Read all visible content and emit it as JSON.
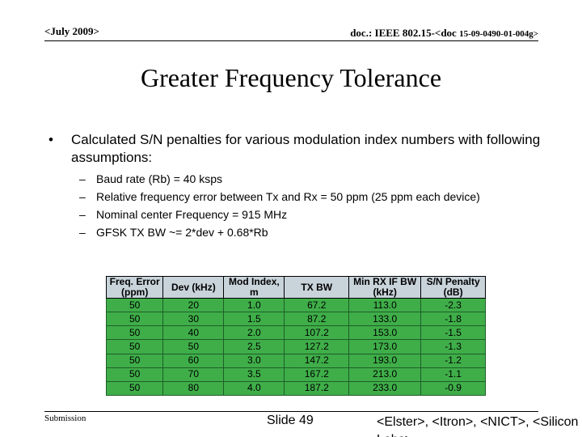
{
  "header": {
    "date": "<July 2009>",
    "doc_prefix": "doc.: IEEE 802.15-<doc",
    "doc_number": "15-09-0490-01-004g>"
  },
  "title": "Greater Frequency Tolerance",
  "bullet": {
    "symbol": "•",
    "text": "Calculated S/N penalties for various modulation index numbers with following assumptions:",
    "sub_items": [
      "Baud rate (Rb) = 40 ksps",
      "Relative frequency error between Tx and Rx = 50 ppm (25 ppm each device)",
      "Nominal center Frequency = 915 MHz",
      "GFSK TX BW ~= 2*dev + 0.68*Rb"
    ]
  },
  "table": {
    "headers": [
      "Freq. Error (ppm)",
      "Dev (kHz)",
      "Mod Index, m",
      "TX BW",
      "Min RX IF BW (kHz)",
      "S/N Penalty (dB)"
    ],
    "rows": [
      [
        "50",
        "20",
        "1.0",
        "67.2",
        "113.0",
        "-2.3"
      ],
      [
        "50",
        "30",
        "1.5",
        "87.2",
        "133.0",
        "-1.8"
      ],
      [
        "50",
        "40",
        "2.0",
        "107.2",
        "153.0",
        "-1.5"
      ],
      [
        "50",
        "50",
        "2.5",
        "127.2",
        "173.0",
        "-1.3"
      ],
      [
        "50",
        "60",
        "3.0",
        "147.2",
        "193.0",
        "-1.2"
      ],
      [
        "50",
        "70",
        "3.5",
        "167.2",
        "213.0",
        "-1.1"
      ],
      [
        "50",
        "80",
        "4.0",
        "187.2",
        "233.0",
        "-0.9"
      ]
    ]
  },
  "footer": {
    "left": "Submission",
    "center": "Slide 49",
    "right": "<Elster>, <Itron>, <NICT>, <Silicon Labs>"
  }
}
